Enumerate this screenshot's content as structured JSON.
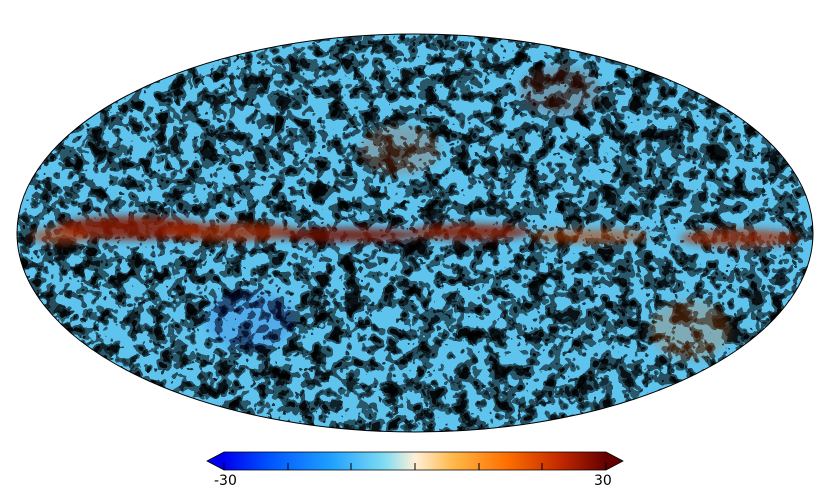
{
  "colorbar": {
    "min_label": "-30",
    "max_label": "30",
    "stops": [
      "#0000ee",
      "#0066ff",
      "#22aaff",
      "#88e0f0",
      "#fff0d8",
      "#ffb040",
      "#ff6a00",
      "#c02800",
      "#6a0000"
    ]
  },
  "map": {
    "projection": "mollweide",
    "palette": {
      "deep_blue": "#0a2cd8",
      "blue": "#1a7ae8",
      "light_blue": "#5ec4ee",
      "pale": "#f6ead0",
      "orange": "#f59a2a",
      "dark_orange": "#e0600a",
      "dark_red": "#8a1a00"
    },
    "outline_color": "#000000"
  }
}
